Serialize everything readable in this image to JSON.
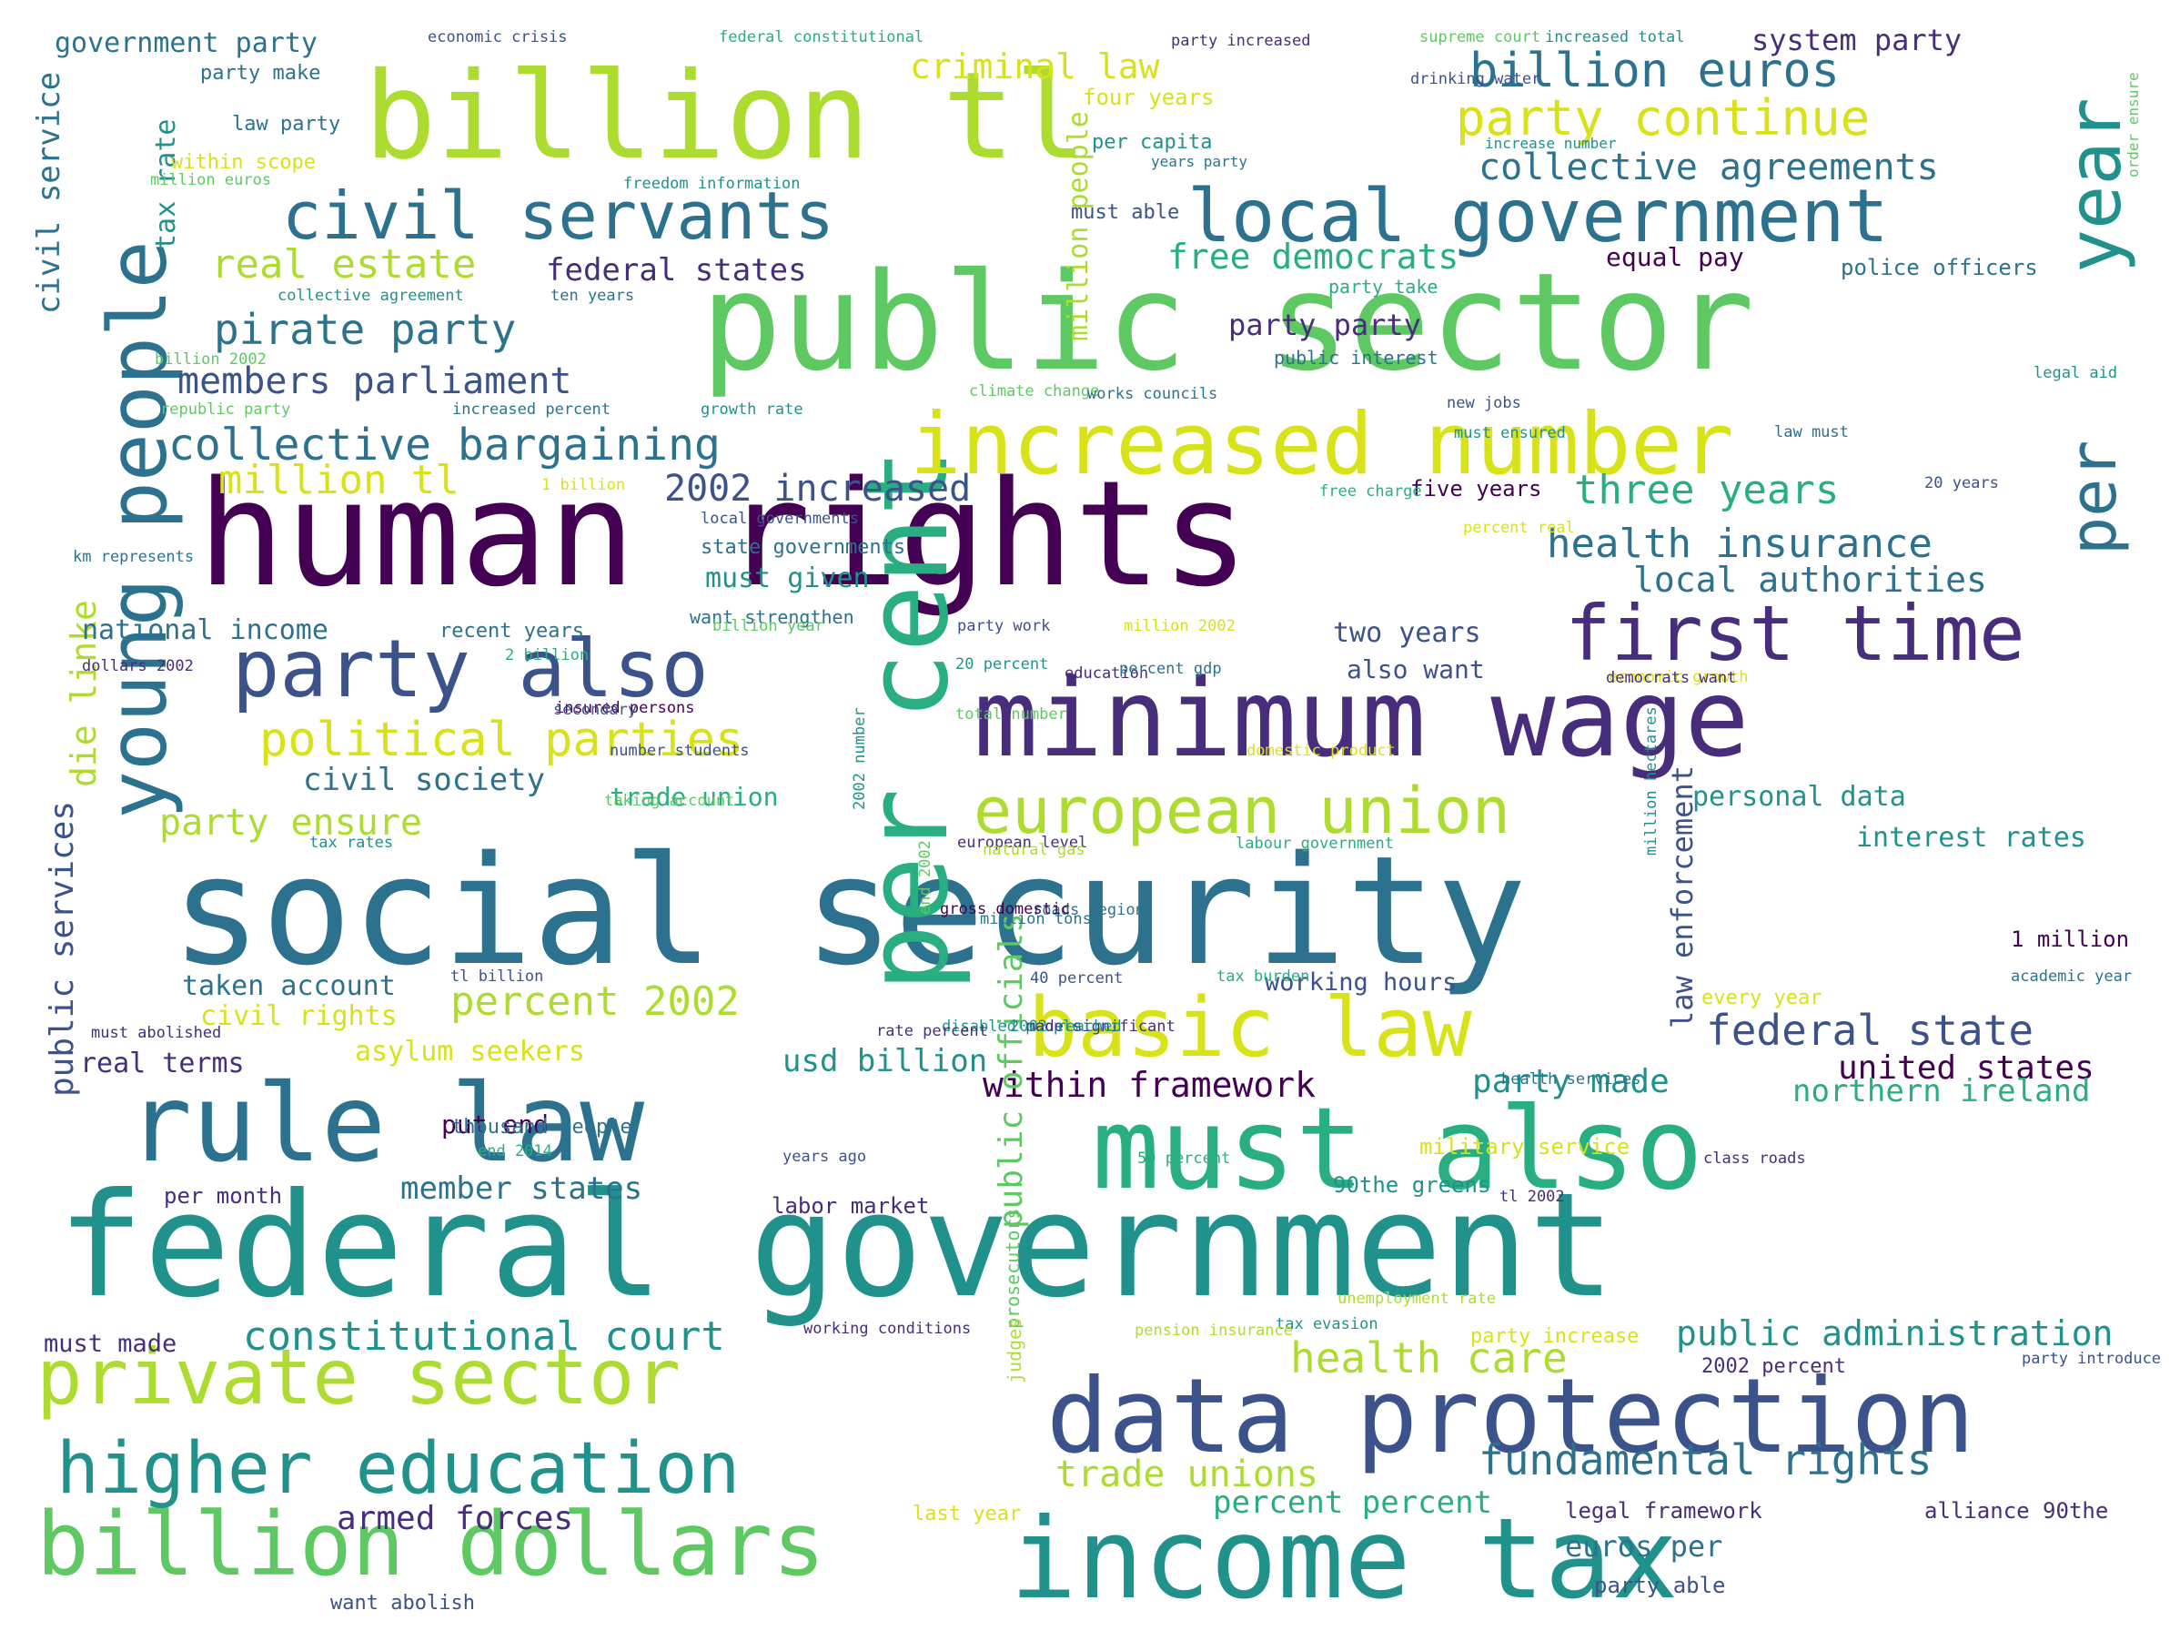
{
  "palette": [
    "#440154",
    "#472d7b",
    "#3b528b",
    "#2c728e",
    "#21918c",
    "#28ae80",
    "#5ec962",
    "#addc30",
    "#d8e219"
  ],
  "words": [
    {
      "text": "human rights",
      "color": "#440154"
    },
    {
      "text": "social security",
      "color": "#2c728e"
    },
    {
      "text": "federal government",
      "color": "#21918c"
    },
    {
      "text": "public sector",
      "color": "#5ec962"
    },
    {
      "text": "billion tl",
      "color": "#addc30"
    },
    {
      "text": "per cent",
      "color": "#28ae80"
    },
    {
      "text": "minimum wage",
      "color": "#472d7b"
    },
    {
      "text": "income tax",
      "color": "#21918c"
    },
    {
      "text": "must also",
      "color": "#28ae80"
    },
    {
      "text": "rule law",
      "color": "#2c728e"
    },
    {
      "text": "data protection",
      "color": "#3b528b"
    },
    {
      "text": "young people",
      "color": "#2c728e"
    },
    {
      "text": "billion dollars",
      "color": "#5ec962"
    },
    {
      "text": "private sector",
      "color": "#addc30"
    },
    {
      "text": "increased number",
      "color": "#d8e219"
    },
    {
      "text": "local government",
      "color": "#2c728e"
    },
    {
      "text": "civil servants",
      "color": "#2c728e"
    },
    {
      "text": "party also",
      "color": "#3b528b"
    },
    {
      "text": "first time",
      "color": "#472d7b"
    },
    {
      "text": "higher education",
      "color": "#21918c"
    },
    {
      "text": "european union",
      "color": "#addc30"
    },
    {
      "text": "basic law",
      "color": "#d8e219"
    },
    {
      "text": "year",
      "color": "#21918c"
    },
    {
      "text": "per",
      "color": "#2c728e"
    },
    {
      "text": "billion euros",
      "color": "#2c728e"
    },
    {
      "text": "party continue",
      "color": "#d8e219"
    },
    {
      "text": "political parties",
      "color": "#d8e219"
    },
    {
      "text": "collective bargaining",
      "color": "#2c728e"
    },
    {
      "text": "collective agreements",
      "color": "#2c728e"
    },
    {
      "text": "constitutional court",
      "color": "#21918c"
    },
    {
      "text": "fundamental rights",
      "color": "#2c728e"
    },
    {
      "text": "health care",
      "color": "#addc30"
    },
    {
      "text": "public administration",
      "color": "#21918c"
    },
    {
      "text": "pirate party",
      "color": "#2c728e"
    },
    {
      "text": "members parliament",
      "color": "#3b528b"
    },
    {
      "text": "real estate",
      "color": "#addc30"
    },
    {
      "text": "percent 2002",
      "color": "#addc30"
    },
    {
      "text": "trade unions",
      "color": "#addc30"
    },
    {
      "text": "health insurance",
      "color": "#2c728e"
    },
    {
      "text": "three years",
      "color": "#28ae80"
    },
    {
      "text": "federal state",
      "color": "#3b528b"
    },
    {
      "text": "local authorities",
      "color": "#2c728e"
    },
    {
      "text": "die linke",
      "color": "#addc30"
    },
    {
      "text": "public services",
      "color": "#3b528b"
    },
    {
      "text": "civil service",
      "color": "#2c728e"
    },
    {
      "text": "million tl",
      "color": "#d8e219"
    },
    {
      "text": "2002 increased",
      "color": "#3b528b"
    },
    {
      "text": "free democrats",
      "color": "#28ae80"
    },
    {
      "text": "federal states",
      "color": "#472d7b"
    },
    {
      "text": "criminal law",
      "color": "#d8e219"
    },
    {
      "text": "party ensure",
      "color": "#addc30"
    },
    {
      "text": "civil society",
      "color": "#2c728e"
    },
    {
      "text": "within framework",
      "color": "#440154"
    },
    {
      "text": "party made",
      "color": "#21918c"
    },
    {
      "text": "united states",
      "color": "#440154"
    },
    {
      "text": "northern ireland",
      "color": "#28ae80"
    },
    {
      "text": "usd billion",
      "color": "#21918c"
    },
    {
      "text": "member states",
      "color": "#2c728e"
    },
    {
      "text": "armed forces",
      "color": "#472d7b"
    },
    {
      "text": "percent percent",
      "color": "#28ae80"
    },
    {
      "text": "euros per",
      "color": "#2c728e"
    },
    {
      "text": "asylum seekers",
      "color": "#d8e219"
    },
    {
      "text": "public officials",
      "color": "#5ec962"
    },
    {
      "text": "law enforcement",
      "color": "#3b528b"
    },
    {
      "text": "two years",
      "color": "#3b528b"
    },
    {
      "text": "national income",
      "color": "#2c728e"
    },
    {
      "text": "taken account",
      "color": "#2c728e"
    },
    {
      "text": "interest rates",
      "color": "#21918c"
    },
    {
      "text": "personal data",
      "color": "#21918c"
    },
    {
      "text": "must made",
      "color": "#472d7b"
    },
    {
      "text": "system party",
      "color": "#472d7b"
    },
    {
      "text": "government party",
      "color": "#2c728e"
    },
    {
      "text": "tax rate",
      "color": "#21918c"
    },
    {
      "text": "party party",
      "color": "#472d7b"
    },
    {
      "text": "also want",
      "color": "#3b528b"
    },
    {
      "text": "equal pay",
      "color": "#440154"
    },
    {
      "text": "trade union",
      "color": "#28ae80"
    },
    {
      "text": "civil rights",
      "color": "#d8e219"
    },
    {
      "text": "put end",
      "color": "#440154"
    },
    {
      "text": "real terms",
      "color": "#472d7b"
    },
    {
      "text": "million people",
      "color": "#addc30"
    },
    {
      "text": "must given",
      "color": "#21918c"
    },
    {
      "text": "working hours",
      "color": "#3b528b"
    },
    {
      "text": "thousand people",
      "color": "#2c728e"
    },
    {
      "text": "legal framework",
      "color": "#472d7b"
    },
    {
      "text": "alliance 90the",
      "color": "#472d7b"
    },
    {
      "text": "party able",
      "color": "#3b528b"
    },
    {
      "text": "last year",
      "color": "#d8e219"
    },
    {
      "text": "want abolish",
      "color": "#3b528b"
    },
    {
      "text": "labor market",
      "color": "#472d7b"
    },
    {
      "text": "per month",
      "color": "#472d7b"
    },
    {
      "text": "90the greens",
      "color": "#21918c"
    },
    {
      "text": "military service",
      "color": "#d8e219"
    },
    {
      "text": "2002 percent",
      "color": "#472d7b"
    },
    {
      "text": "party increase",
      "color": "#d8e219"
    },
    {
      "text": "every year",
      "color": "#d8e219"
    },
    {
      "text": "1 million",
      "color": "#440154"
    },
    {
      "text": "police officers",
      "color": "#2c728e"
    },
    {
      "text": "five years",
      "color": "#440154"
    },
    {
      "text": "four years",
      "color": "#d8e219"
    },
    {
      "text": "per capita",
      "color": "#21918c"
    },
    {
      "text": "must able",
      "color": "#3b528b"
    },
    {
      "text": "law party",
      "color": "#2c728e"
    },
    {
      "text": "party make",
      "color": "#2c728e"
    },
    {
      "text": "within scope",
      "color": "#d8e219"
    },
    {
      "text": "recent years",
      "color": "#2c728e"
    },
    {
      "text": "state governments",
      "color": "#2c728e"
    },
    {
      "text": "want strengthen",
      "color": "#2c728e"
    },
    {
      "text": "prosecutors",
      "color": "#5ec962"
    },
    {
      "text": "judges",
      "color": "#addc30"
    },
    {
      "text": "party take",
      "color": "#28ae80"
    },
    {
      "text": "public interest",
      "color": "#2c728e"
    },
    {
      "text": "economic crisis",
      "color": "#3b528b"
    },
    {
      "text": "federal constitutional",
      "color": "#28ae80"
    },
    {
      "text": "party increased",
      "color": "#472d7b"
    },
    {
      "text": "supreme court",
      "color": "#5ec962"
    },
    {
      "text": "increased total",
      "color": "#21918c"
    },
    {
      "text": "drinking water",
      "color": "#3b528b"
    },
    {
      "text": "increase number",
      "color": "#21918c"
    },
    {
      "text": "years party",
      "color": "#2c728e"
    },
    {
      "text": "order ensure",
      "color": "#5ec962"
    },
    {
      "text": "million euros",
      "color": "#5ec962"
    },
    {
      "text": "freedom information",
      "color": "#21918c"
    },
    {
      "text": "collective agreement",
      "color": "#21918c"
    },
    {
      "text": "ten years",
      "color": "#2c728e"
    },
    {
      "text": "billion 2002",
      "color": "#5ec962"
    },
    {
      "text": "republic party",
      "color": "#5ec962"
    },
    {
      "text": "increased percent",
      "color": "#2c728e"
    },
    {
      "text": "growth rate",
      "color": "#21918c"
    },
    {
      "text": "climate change",
      "color": "#5ec962"
    },
    {
      "text": "works councils",
      "color": "#2c728e"
    },
    {
      "text": "new jobs",
      "color": "#3b528b"
    },
    {
      "text": "must ensured",
      "color": "#21918c"
    },
    {
      "text": "legal aid",
      "color": "#21918c"
    },
    {
      "text": "20 years",
      "color": "#3b528b"
    },
    {
      "text": "law must",
      "color": "#2c728e"
    },
    {
      "text": "percent real",
      "color": "#d8e219"
    },
    {
      "text": "1 billion",
      "color": "#d8e219"
    },
    {
      "text": "local governments",
      "color": "#3b528b"
    },
    {
      "text": "free charge",
      "color": "#28ae80"
    },
    {
      "text": "km represents",
      "color": "#2c728e"
    },
    {
      "text": "2 billion",
      "color": "#28ae80"
    },
    {
      "text": "billion year",
      "color": "#5ec962"
    },
    {
      "text": "party work",
      "color": "#3b528b"
    },
    {
      "text": "20 percent",
      "color": "#21918c"
    },
    {
      "text": "million 2002",
      "color": "#d8e219"
    },
    {
      "text": "economic growth",
      "color": "#d8e219"
    },
    {
      "text": "dollars 2002",
      "color": "#472d7b"
    },
    {
      "text": "insured persons",
      "color": "#440154"
    },
    {
      "text": "education",
      "color": "#472d7b"
    },
    {
      "text": "percent gdp",
      "color": "#2c728e"
    },
    {
      "text": "democrats want",
      "color": "#472d7b"
    },
    {
      "text": "total number",
      "color": "#5ec962"
    },
    {
      "text": "secondary",
      "color": "#3b528b"
    },
    {
      "text": "domestic product",
      "color": "#d8e219"
    },
    {
      "text": "number students",
      "color": "#3b528b"
    },
    {
      "text": "million hectares",
      "color": "#21918c"
    },
    {
      "text": "taking account",
      "color": "#5ec962"
    },
    {
      "text": "2002 number",
      "color": "#21918c"
    },
    {
      "text": "end 2002",
      "color": "#5ec962"
    },
    {
      "text": "tax rates",
      "color": "#21918c"
    },
    {
      "text": "labour government",
      "color": "#28ae80"
    },
    {
      "text": "european level",
      "color": "#472d7b"
    },
    {
      "text": "natural gas",
      "color": "#addc30"
    },
    {
      "text": "million tons",
      "color": "#2c728e"
    },
    {
      "text": "roads region",
      "color": "#2c728e"
    },
    {
      "text": "gross domestic",
      "color": "#440154"
    },
    {
      "text": "tl billion",
      "color": "#3b528b"
    },
    {
      "text": "40 percent",
      "color": "#3b528b"
    },
    {
      "text": "tax burden",
      "color": "#28ae80"
    },
    {
      "text": "disabled people",
      "color": "#21918c"
    },
    {
      "text": "academic year",
      "color": "#2c728e"
    },
    {
      "text": "made significant",
      "color": "#472d7b"
    },
    {
      "text": "must abolished",
      "color": "#472d7b"
    },
    {
      "text": "rate percent",
      "color": "#472d7b"
    },
    {
      "text": "2002 reached",
      "color": "#21918c"
    },
    {
      "text": "health services",
      "color": "#2c728e"
    },
    {
      "text": "end 2014",
      "color": "#28ae80"
    },
    {
      "text": "years ago",
      "color": "#3b528b"
    },
    {
      "text": "50 percent",
      "color": "#28ae80"
    },
    {
      "text": "tl 2002",
      "color": "#472d7b"
    },
    {
      "text": "class roads",
      "color": "#472d7b"
    },
    {
      "text": "unemployment rate",
      "color": "#addc30"
    },
    {
      "text": "tax evasion",
      "color": "#21918c"
    },
    {
      "text": "working conditions",
      "color": "#472d7b"
    },
    {
      "text": "pension insurance",
      "color": "#addc30"
    },
    {
      "text": "party introduce",
      "color": "#3b528b"
    }
  ]
}
